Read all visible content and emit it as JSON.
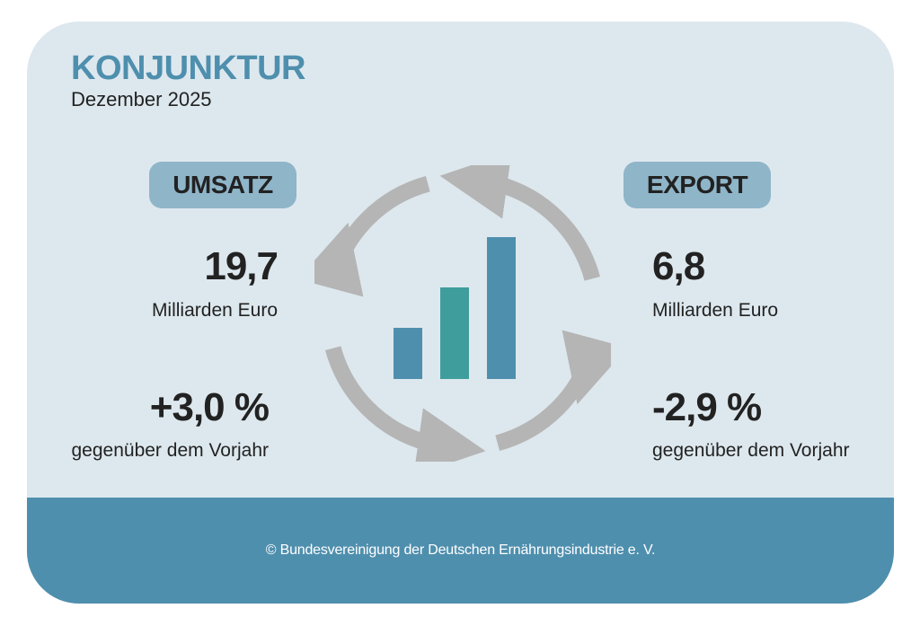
{
  "title": "KONJUNKTUR",
  "subtitle": "Dezember 2025",
  "umsatz": {
    "label": "UMSATZ",
    "value": "19,7",
    "unit": "Milliarden Euro",
    "change": "+3,0 %",
    "change_label": "gegenüber dem Vorjahr"
  },
  "export": {
    "label": "EXPORT",
    "value": "6,8",
    "unit": "Milliarden Euro",
    "change": "-2,9 %",
    "change_label": "gegenüber dem Vorjahr"
  },
  "footer": "© Bundesvereinigung der Deutschen Ernährungsindustrie e. V.",
  "colors": {
    "background": "#dde8ee",
    "accent": "#4f8fae",
    "pill": "#8fb5c9",
    "bar_blue": "#4f8fae",
    "bar_teal": "#3f9e9c",
    "arrow_gray": "#b5b5b5"
  },
  "icons": [
    "circular-arrows-icon",
    "bar-chart-icon"
  ]
}
